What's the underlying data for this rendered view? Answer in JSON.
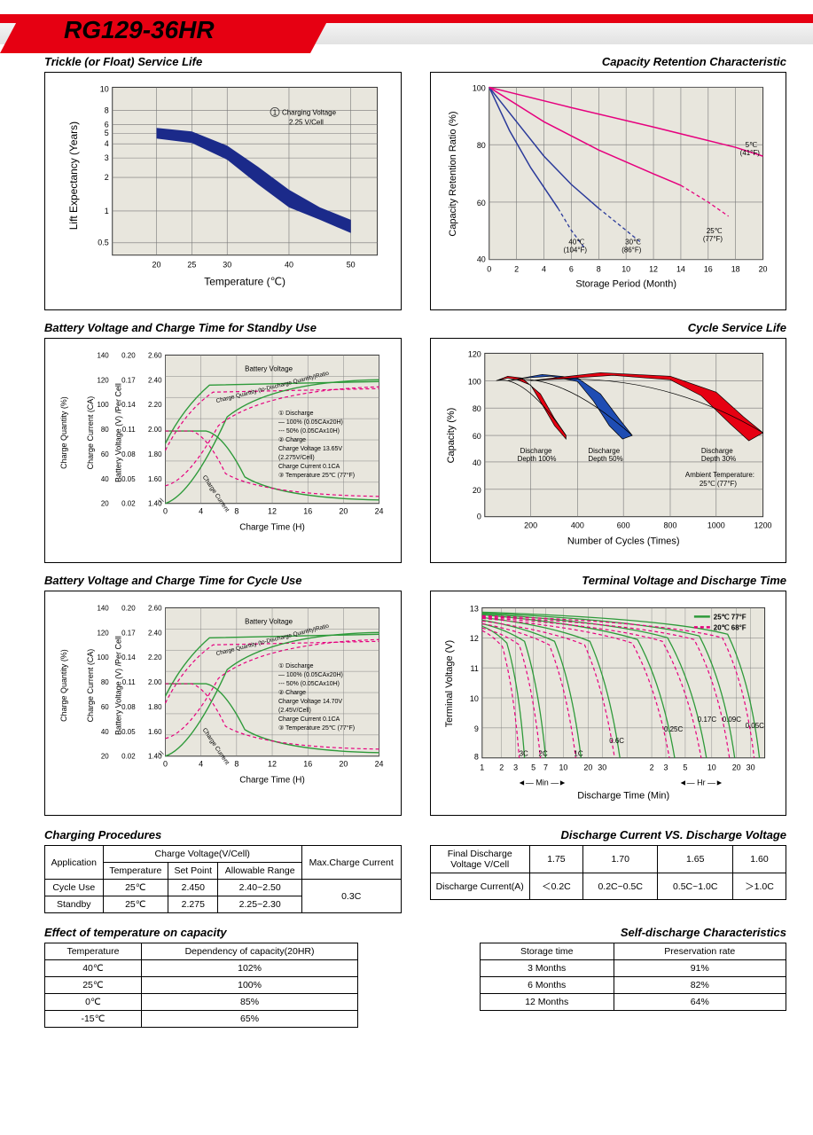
{
  "model": "RG129-36HR",
  "charts": {
    "trickle": {
      "title": "Trickle (or Float) Service Life",
      "xlabel": "Temperature (℃)",
      "ylabel": "Lift  Expectancy (Years)",
      "xticks": [
        20,
        25,
        30,
        40,
        50
      ],
      "yticks": [
        0.5,
        1,
        2,
        3,
        4,
        5,
        6,
        8,
        10
      ],
      "band_upper": [
        [
          20,
          5.5
        ],
        [
          25,
          5.2
        ],
        [
          30,
          4.2
        ],
        [
          35,
          2.9
        ],
        [
          40,
          1.9
        ],
        [
          45,
          1.3
        ],
        [
          50,
          1.0
        ]
      ],
      "band_lower": [
        [
          20,
          4.3
        ],
        [
          25,
          4.0
        ],
        [
          30,
          3.2
        ],
        [
          35,
          2.2
        ],
        [
          40,
          1.4
        ],
        [
          45,
          0.95
        ],
        [
          50,
          0.73
        ]
      ],
      "band_color": "#1b2a8a",
      "annotation": "① Charging Voltage\n    2.25 V/Cell",
      "bg": "#e8e6dd",
      "grid": "#555"
    },
    "capacity_retention": {
      "title": "Capacity Retention Characteristic",
      "xlabel": "Storage Period (Month)",
      "ylabel": "Capacity Retention Ratio (%)",
      "xticks": [
        0,
        2,
        4,
        6,
        8,
        10,
        12,
        14,
        16,
        18,
        20
      ],
      "yticks": [
        40,
        60,
        80,
        100
      ],
      "lines": [
        {
          "label": "40℃ (104°F)",
          "color": "#2a3a9a",
          "solid": [
            [
              0,
              100
            ],
            [
              1.5,
              85
            ],
            [
              3,
              72
            ],
            [
              5,
              58
            ]
          ],
          "dash": [
            [
              5,
              58
            ],
            [
              6,
              50
            ],
            [
              7,
              44
            ]
          ]
        },
        {
          "label": "30℃ (86°F)",
          "color": "#2a3a9a",
          "solid": [
            [
              0,
              100
            ],
            [
              2,
              88
            ],
            [
              4,
              76
            ],
            [
              6,
              66
            ],
            [
              8,
              58
            ]
          ],
          "dash": [
            [
              8,
              58
            ],
            [
              10,
              50
            ],
            [
              11,
              46
            ]
          ]
        },
        {
          "label": "25℃ (77°F)",
          "color": "#e6007e",
          "solid": [
            [
              0,
              100
            ],
            [
              4,
              88
            ],
            [
              8,
              78
            ],
            [
              12,
              70
            ],
            [
              14,
              66
            ]
          ],
          "dash": [
            [
              14,
              66
            ],
            [
              16,
              60
            ],
            [
              17.5,
              55
            ]
          ]
        },
        {
          "label": "5℃ (41°F)",
          "color": "#e6007e",
          "solid": [
            [
              0,
              100
            ],
            [
              6,
              93
            ],
            [
              12,
              86
            ],
            [
              18,
              79
            ],
            [
              20,
              76
            ]
          ]
        }
      ],
      "bg": "#e8e6dd",
      "grid": "#555"
    },
    "standby_charge": {
      "title": "Battery Voltage and Charge Time for Standby Use",
      "xlabel": "Charge Time (H)",
      "xticks": [
        0,
        4,
        8,
        12,
        16,
        20,
        24
      ],
      "y1_label": "Charge Quantity (%)",
      "y1_ticks": [
        20,
        40,
        60,
        80,
        100,
        120,
        140
      ],
      "y2_label": "Charge Current (CA)",
      "y2_ticks": [
        0.02,
        0.05,
        0.08,
        0.11,
        0.14,
        0.17,
        0.2
      ],
      "y3_label": "Battery Voltage (V) /Per Cell",
      "y3_ticks": [
        1.4,
        1.6,
        1.8,
        2.0,
        2.2,
        2.4,
        2.6
      ],
      "annotations": [
        "Battery Voltage",
        "Charge Quantity (to-Discharge Quantity)Ratio",
        "Charge Current",
        "① Discharge",
        "— 100% (0.05CAx20H)",
        "--- 50% (0.05CAx10H)",
        "② Charge",
        "Charge Voltage 13.65V",
        "(2.275V/Cell)",
        "Charge Current 0.1CA",
        "③ Temperature 25℃ (77°F)"
      ],
      "solid_color": "#2e9a3a",
      "dash_color": "#e6007e"
    },
    "cycle_life": {
      "title": "Cycle Service Life",
      "xlabel": "Number of Cycles (Times)",
      "ylabel": "Capacity (%)",
      "xticks": [
        200,
        400,
        600,
        800,
        1000,
        1200
      ],
      "yticks": [
        0,
        20,
        40,
        60,
        80,
        100,
        120
      ],
      "bands": [
        {
          "label": "Discharge Depth 100%",
          "color": "#e60012",
          "upper": [
            [
              50,
              100
            ],
            [
              100,
              103
            ],
            [
              180,
              102
            ],
            [
              260,
              90
            ],
            [
              320,
              72
            ],
            [
              370,
              60
            ]
          ],
          "lower": [
            [
              50,
              100
            ],
            [
              100,
              102
            ],
            [
              160,
              100
            ],
            [
              230,
              86
            ],
            [
              290,
              70
            ],
            [
              340,
              58
            ]
          ]
        },
        {
          "label": "Discharge Depth 50%",
          "color": "#1f4db3",
          "upper": [
            [
              100,
              100
            ],
            [
              250,
              104
            ],
            [
              400,
              102
            ],
            [
              500,
              92
            ],
            [
              580,
              75
            ],
            [
              640,
              60
            ]
          ],
          "lower": [
            [
              100,
              100
            ],
            [
              250,
              103
            ],
            [
              380,
              100
            ],
            [
              470,
              88
            ],
            [
              550,
              72
            ],
            [
              600,
              58
            ]
          ]
        },
        {
          "label": "Discharge Depth 30%",
          "color": "#e60012",
          "upper": [
            [
              200,
              100
            ],
            [
              500,
              105
            ],
            [
              800,
              103
            ],
            [
              1000,
              94
            ],
            [
              1120,
              76
            ],
            [
              1200,
              62
            ]
          ],
          "lower": [
            [
              200,
              100
            ],
            [
              500,
              104
            ],
            [
              760,
              101
            ],
            [
              940,
              90
            ],
            [
              1060,
              74
            ],
            [
              1140,
              58
            ]
          ]
        }
      ],
      "ambient": "Ambient Temperature: 25℃ (77°F)",
      "bg": "#e8e6dd",
      "grid": "#555"
    },
    "cycle_charge": {
      "title": "Battery Voltage and Charge Time for Cycle Use",
      "xlabel": "Charge Time (H)",
      "xticks": [
        0,
        4,
        8,
        12,
        16,
        20,
        24
      ],
      "y1_label": "Charge Quantity (%)",
      "y1_ticks": [
        20,
        40,
        60,
        80,
        100,
        120,
        140
      ],
      "y2_label": "Charge Current (CA)",
      "y2_ticks": [
        0.02,
        0.05,
        0.08,
        0.11,
        0.14,
        0.17,
        0.2
      ],
      "y3_label": "Battery Voltage (V) /Per Cell",
      "y3_ticks": [
        1.4,
        1.6,
        1.8,
        2.0,
        2.2,
        2.4,
        2.6
      ],
      "annotations": [
        "Battery Voltage",
        "Charge Quantity (to-Discharge Quantity)Ratio",
        "Charge Current",
        "① Discharge",
        "— 100% (0.05CAx20H)",
        "--- 50% (0.05CAx10H)",
        "② Charge",
        "Charge Voltage 14.70V",
        "(2.45V/Cell)",
        "Charge Current 0.1CA",
        "③ Temperature 25℃ (77°F)"
      ],
      "solid_color": "#2e9a3a",
      "dash_color": "#e6007e"
    },
    "terminal": {
      "title": "Terminal Voltage and Discharge Time",
      "xlabel": "Discharge Time (Min)",
      "ylabel": "Terminal Voltage (V)",
      "yticks": [
        8,
        9,
        10,
        11,
        12,
        13
      ],
      "xticks_min": [
        "1",
        "2",
        "3",
        "5",
        "7",
        "10",
        "20",
        "30",
        "60"
      ],
      "xticks_hr": [
        "2",
        "3",
        "5",
        "10",
        "20",
        "30"
      ],
      "legend": [
        {
          "label": "25℃ 77°F",
          "color": "#2e9a3a",
          "dash": false
        },
        {
          "label": "20℃ 68°F",
          "color": "#e6007e",
          "dash": true
        }
      ],
      "curves": [
        "3C",
        "2C",
        "1C",
        "0.6C",
        "0.25C",
        "0.17C",
        "0.09C",
        "0.05C"
      ],
      "segments": [
        "Min",
        "Hr"
      ]
    }
  },
  "tables": {
    "charging_proc": {
      "title": "Charging Procedures",
      "headers": {
        "app": "Application",
        "cv": "Charge Voltage(V/Cell)",
        "temp": "Temperature",
        "sp": "Set Point",
        "ar": "Allowable Range",
        "mc": "Max.Charge Current"
      },
      "rows": [
        {
          "app": "Cycle Use",
          "temp": "25℃",
          "sp": "2.450",
          "ar": "2.40~2.50"
        },
        {
          "app": "Standby",
          "temp": "25℃",
          "sp": "2.275",
          "ar": "2.25~2.30"
        }
      ],
      "max_current": "0.3C"
    },
    "discharge_vs": {
      "title": "Discharge Current VS. Discharge Voltage",
      "row1": [
        "Final Discharge Voltage V/Cell",
        "1.75",
        "1.70",
        "1.65",
        "1.60"
      ],
      "row2": [
        "Discharge Current(A)",
        "＜0.2C",
        "0.2C~0.5C",
        "0.5C~1.0C",
        "＞1.0C"
      ]
    },
    "temp_effect": {
      "title": "Effect of temperature on capacity",
      "headers": [
        "Temperature",
        "Dependency of capacity(20HR)"
      ],
      "rows": [
        [
          "40℃",
          "102%"
        ],
        [
          "25℃",
          "100%"
        ],
        [
          "0℃",
          "85%"
        ],
        [
          "-15℃",
          "65%"
        ]
      ]
    },
    "self_discharge": {
      "title": "Self-discharge Characteristics",
      "headers": [
        "Storage time",
        "Preservation rate"
      ],
      "rows": [
        [
          "3 Months",
          "91%"
        ],
        [
          "6 Months",
          "82%"
        ],
        [
          "12 Months",
          "64%"
        ]
      ]
    }
  }
}
